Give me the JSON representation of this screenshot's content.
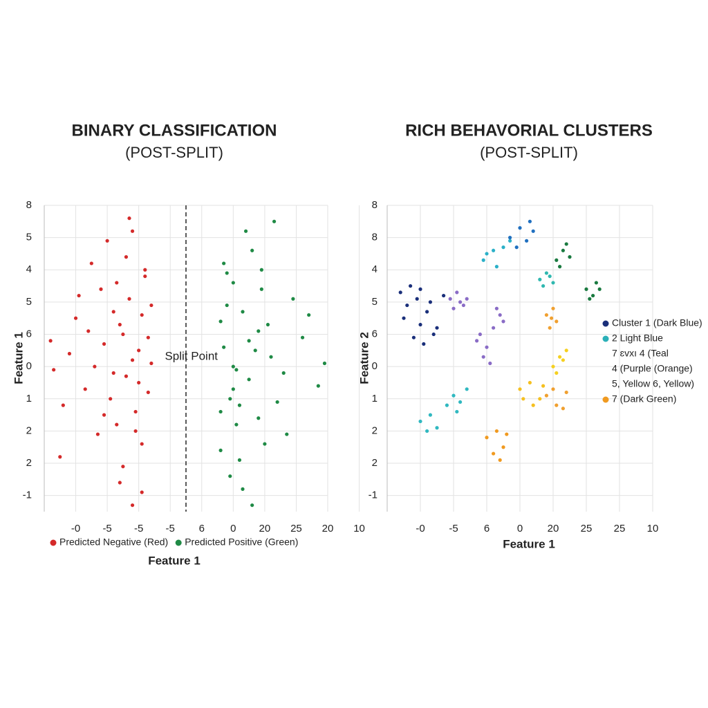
{
  "chart_data": [
    {
      "type": "scatter",
      "title": "BINARY CLASSIFICATION",
      "subtitle": "(POST-SPLIT)",
      "x_label": "Feature 1",
      "y_label": "Feature 1",
      "grid": true,
      "xlim": [
        0,
        9
      ],
      "ylim": [
        -0.5,
        9
      ],
      "xticks": [
        {
          "value": 1,
          "label": "-0"
        },
        {
          "value": 2,
          "label": "-5"
        },
        {
          "value": 3,
          "label": "-5"
        },
        {
          "value": 4,
          "label": "-5"
        },
        {
          "value": 5,
          "label": "6"
        },
        {
          "value": 6,
          "label": "0"
        },
        {
          "value": 7,
          "label": "20"
        },
        {
          "value": 8,
          "label": "25"
        },
        {
          "value": 9,
          "label": "20"
        },
        {
          "value": 10,
          "label": "10"
        }
      ],
      "yticks": [
        {
          "value": 9,
          "label": "8"
        },
        {
          "value": 8,
          "label": "5"
        },
        {
          "value": 7,
          "label": "4"
        },
        {
          "value": 6,
          "label": "5"
        },
        {
          "value": 5,
          "label": "6"
        },
        {
          "value": 4,
          "label": "0"
        },
        {
          "value": 3,
          "label": "1"
        },
        {
          "value": 2,
          "label": "2"
        },
        {
          "value": 1,
          "label": "2"
        },
        {
          "value": 0,
          "label": "-1"
        }
      ],
      "split_x": 4.5,
      "annotation": "Split Point",
      "series": [
        {
          "name": "Predicted Negative (Red)",
          "color": "#d42a2a",
          "x": [
            2.5,
            2.8,
            3.1,
            2.2,
            1.9,
            3.3,
            2.7,
            2.4,
            3.0,
            1.6,
            2.9,
            3.2,
            2.1,
            2.6,
            3.4,
            1.8,
            2.3,
            3.1,
            2.8,
            1.4,
            0.8,
            0.3,
            1.1,
            0.6,
            2.0,
            3.3,
            2.5,
            1.7,
            3.0,
            2.2,
            1.3,
            0.5,
            2.9,
            3.2,
            2.4,
            1.0,
            2.7,
            3.4,
            1.9,
            2.6,
            0.2,
            1.5,
            3.1,
            2.3,
            2.8
          ],
          "y": [
            5.0,
            4.2,
            5.6,
            3.8,
            4.7,
            3.2,
            6.1,
            5.3,
            4.5,
            4.0,
            2.6,
            6.8,
            3.0,
            7.4,
            5.9,
            6.4,
            2.2,
            1.6,
            8.2,
            5.1,
            4.4,
            3.9,
            6.2,
            2.8,
            7.9,
            4.9,
            0.9,
            1.9,
            3.5,
            5.7,
            3.3,
            1.2,
            2.0,
            7.0,
            0.4,
            5.5,
            8.6,
            4.1,
            2.5,
            3.7,
            4.8,
            7.2,
            0.1,
            6.6,
            -0.3
          ]
        },
        {
          "name": "Predicted Positive (Green)",
          "color": "#1f8a45",
          "x": [
            6.0,
            5.7,
            6.5,
            6.8,
            5.9,
            7.2,
            6.3,
            5.6,
            6.9,
            7.6,
            6.1,
            5.8,
            6.6,
            7.0,
            8.2,
            8.7,
            5.6,
            6.4,
            7.4,
            6.2,
            5.9,
            6.7,
            7.9,
            6.0,
            8.9,
            5.7,
            6.3,
            7.1,
            6.8,
            5.8,
            6.5,
            7.7,
            6.1,
            8.4,
            6.9,
            5.6,
            7.3,
            6.2,
            6.0,
            6.6
          ],
          "y": [
            4.0,
            4.6,
            3.6,
            5.1,
            3.0,
            4.3,
            5.7,
            2.6,
            6.4,
            3.8,
            2.2,
            6.9,
            7.6,
            1.6,
            4.9,
            3.4,
            5.4,
            8.2,
            2.9,
            1.1,
            0.6,
            4.5,
            6.1,
            3.3,
            4.1,
            7.2,
            0.2,
            5.3,
            2.4,
            5.9,
            4.8,
            1.9,
            3.9,
            5.6,
            7.0,
            1.4,
            8.5,
            2.8,
            6.6,
            -0.3
          ]
        }
      ]
    },
    {
      "type": "scatter",
      "title": "RICH BEHAVORIAL CLUSTERS",
      "subtitle": "(POST-SPLIT)",
      "x_label": "Feature 1",
      "y_label": "Feature 2",
      "grid": true,
      "xlim": [
        0,
        8
      ],
      "ylim": [
        -0.5,
        9
      ],
      "xticks": [
        {
          "value": 1,
          "label": "-0"
        },
        {
          "value": 2,
          "label": "-5"
        },
        {
          "value": 3,
          "label": "6"
        },
        {
          "value": 4,
          "label": "0"
        },
        {
          "value": 5,
          "label": "20"
        },
        {
          "value": 6,
          "label": "25"
        },
        {
          "value": 7,
          "label": "25"
        },
        {
          "value": 8,
          "label": "10"
        }
      ],
      "yticks": [
        {
          "value": 9,
          "label": "8"
        },
        {
          "value": 8,
          "label": "8"
        },
        {
          "value": 7,
          "label": "4"
        },
        {
          "value": 6,
          "label": "5"
        },
        {
          "value": 5,
          "label": "6"
        },
        {
          "value": 4,
          "label": "0"
        },
        {
          "value": 3,
          "label": "1"
        },
        {
          "value": 2,
          "label": "2"
        },
        {
          "value": 1,
          "label": "2"
        },
        {
          "value": 0,
          "label": "-1"
        }
      ],
      "legend": [
        {
          "label": "Cluster 1 (Dark Blue)",
          "color": "#1a2f7a"
        },
        {
          "label": "2 Light Blue",
          "color": "#2bb0b8"
        },
        {
          "label": "7 ɛvxı 4 (Teal",
          "color": null
        },
        {
          "label": "4 (Purple  (Orange)",
          "color": null
        },
        {
          "label": "5, Yellow 6, Yellow)",
          "color": null
        },
        {
          "label": "7 (Dark Green)",
          "color": "#f09a20"
        }
      ],
      "series": [
        {
          "color": "#1a2f7a",
          "x": [
            0.4,
            0.7,
            1.0,
            1.3,
            0.6,
            0.9,
            1.2,
            1.5,
            0.8,
            1.1,
            1.4,
            0.5,
            1.7,
            1.0
          ],
          "y": [
            6.3,
            6.5,
            6.4,
            6.0,
            5.9,
            6.1,
            5.7,
            5.2,
            4.9,
            4.7,
            5.0,
            5.5,
            6.2,
            5.3
          ]
        },
        {
          "color": "#8a6cc6",
          "x": [
            1.9,
            2.1,
            2.3,
            2.0,
            2.4,
            2.2
          ],
          "y": [
            6.1,
            6.3,
            5.9,
            5.8,
            6.1,
            6.0
          ]
        },
        {
          "color": "#8a6cc6",
          "x": [
            2.8,
            3.0,
            2.9,
            3.2,
            3.4,
            3.3,
            2.7,
            3.1,
            3.5
          ],
          "y": [
            5.0,
            4.6,
            4.3,
            5.2,
            5.6,
            5.8,
            4.8,
            4.1,
            5.4
          ]
        },
        {
          "color": "#2bb0c8",
          "x": [
            2.9,
            3.2,
            3.5,
            3.3,
            3.7,
            3.0
          ],
          "y": [
            7.3,
            7.6,
            7.7,
            7.1,
            7.9,
            7.5
          ]
        },
        {
          "color": "#2070c0",
          "x": [
            3.7,
            4.0,
            4.2,
            4.4,
            3.9,
            4.3
          ],
          "y": [
            8.0,
            8.3,
            7.9,
            8.2,
            7.7,
            8.5
          ]
        },
        {
          "color": "#1a7a40",
          "x": [
            5.1,
            5.3,
            5.5,
            5.2,
            5.4,
            6.0,
            6.2,
            6.4,
            6.1,
            6.3
          ],
          "y": [
            7.3,
            7.6,
            7.4,
            7.1,
            7.8,
            6.4,
            6.2,
            6.4,
            6.1,
            6.6
          ]
        },
        {
          "color": "#30b8b0",
          "x": [
            4.6,
            4.8,
            5.0,
            4.7,
            4.9
          ],
          "y": [
            6.7,
            6.9,
            6.6,
            6.5,
            6.8
          ]
        },
        {
          "color": "#f0a030",
          "x": [
            4.8,
            5.0,
            5.1,
            4.9,
            4.95
          ],
          "y": [
            5.6,
            5.8,
            5.4,
            5.2,
            5.5
          ]
        },
        {
          "color": "#f5d020",
          "x": [
            5.0,
            5.2,
            5.4,
            5.1,
            5.3
          ],
          "y": [
            4.0,
            4.3,
            4.5,
            3.8,
            4.2
          ]
        },
        {
          "color": "#f5c020",
          "x": [
            4.0,
            4.3,
            4.6,
            4.4,
            4.1,
            4.7
          ],
          "y": [
            3.3,
            3.5,
            3.0,
            2.8,
            3.0,
            3.4
          ]
        },
        {
          "color": "#f0a030",
          "x": [
            4.8,
            5.1,
            5.4,
            5.0,
            5.3
          ],
          "y": [
            3.1,
            2.8,
            3.2,
            3.3,
            2.7
          ]
        },
        {
          "color": "#30b8c0",
          "x": [
            1.0,
            1.3,
            1.5,
            1.8,
            2.0,
            2.2,
            2.4,
            1.2,
            2.1
          ],
          "y": [
            2.3,
            2.5,
            2.1,
            2.8,
            3.1,
            2.9,
            3.3,
            2.0,
            2.6
          ]
        },
        {
          "color": "#f09a20",
          "x": [
            3.0,
            3.3,
            3.5,
            3.2,
            3.6,
            3.4
          ],
          "y": [
            1.8,
            2.0,
            1.5,
            1.3,
            1.9,
            1.1
          ]
        }
      ]
    }
  ]
}
